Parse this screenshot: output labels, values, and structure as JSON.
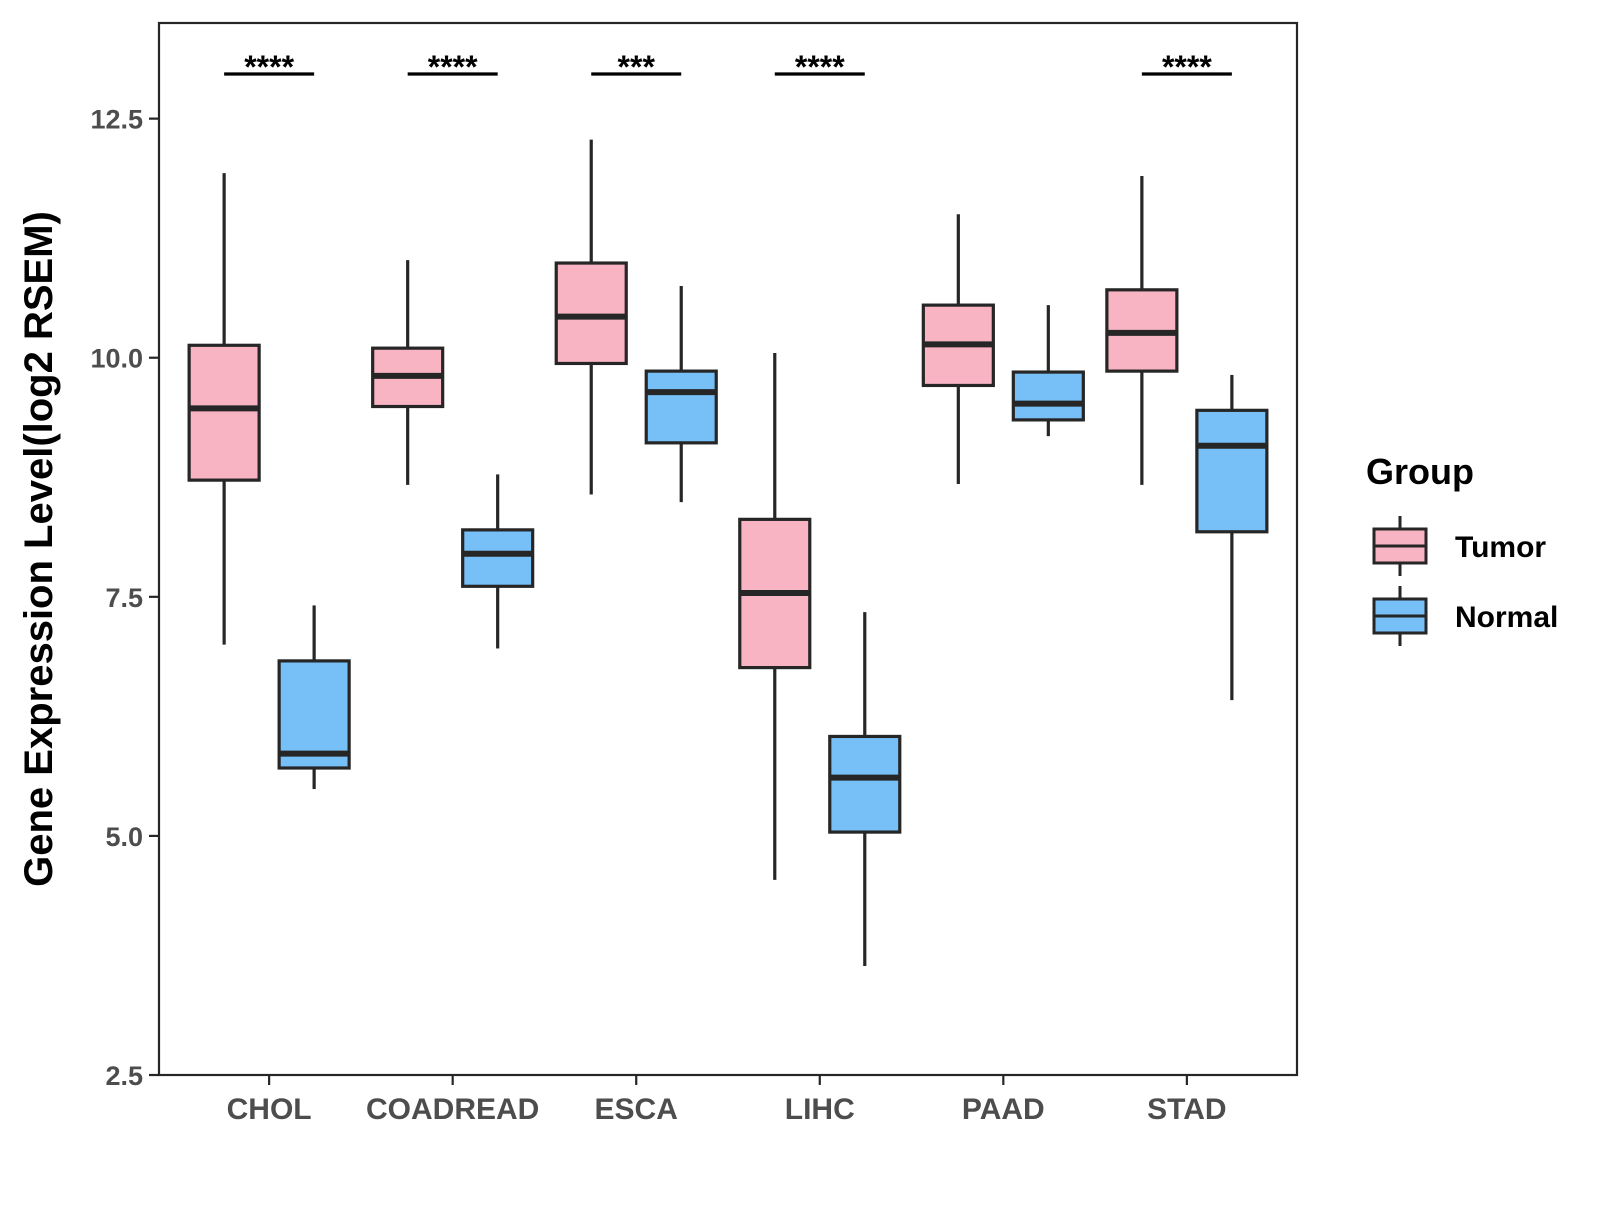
{
  "chart_data": {
    "type": "boxplot",
    "ylabel": "Gene Expression Level(log2 RSEM)",
    "xlabel": "",
    "ylim": [
      2.5,
      13.5
    ],
    "yticks": [
      2.5,
      5.0,
      7.5,
      10.0,
      12.5
    ],
    "ytick_labels": [
      "2.5",
      "5.0",
      "7.5",
      "10.0",
      "12.5"
    ],
    "categories": [
      "CHOL",
      "COADREAD",
      "ESCA",
      "LIHC",
      "PAAD",
      "STAD"
    ],
    "legend": {
      "title": "Group",
      "position": "right",
      "entries": [
        "Tumor",
        "Normal"
      ]
    },
    "colors": {
      "Tumor": "#f9b4c4",
      "Normal": "#76bff7",
      "stroke": "#262626",
      "axis": "#262626"
    },
    "significance": [
      "****",
      "****",
      "***",
      "****",
      "",
      "****"
    ],
    "series": [
      {
        "name": "Tumor",
        "boxes": [
          {
            "min": 7.0,
            "q1": 8.72,
            "median": 9.47,
            "q3": 10.13,
            "max": 11.93
          },
          {
            "min": 8.67,
            "q1": 9.49,
            "median": 9.81,
            "q3": 10.1,
            "max": 11.02
          },
          {
            "min": 8.57,
            "q1": 9.94,
            "median": 10.43,
            "q3": 10.99,
            "max": 12.28
          },
          {
            "min": 4.54,
            "q1": 6.76,
            "median": 7.54,
            "q3": 8.31,
            "max": 10.05
          },
          {
            "min": 8.68,
            "q1": 9.71,
            "median": 10.14,
            "q3": 10.55,
            "max": 11.5
          },
          {
            "min": 8.67,
            "q1": 9.86,
            "median": 10.26,
            "q3": 10.71,
            "max": 11.9
          }
        ]
      },
      {
        "name": "Normal",
        "boxes": [
          {
            "min": 5.49,
            "q1": 5.71,
            "median": 5.86,
            "q3": 6.83,
            "max": 7.41
          },
          {
            "min": 6.96,
            "q1": 7.61,
            "median": 7.95,
            "q3": 8.2,
            "max": 8.78
          },
          {
            "min": 8.49,
            "q1": 9.11,
            "median": 9.64,
            "q3": 9.86,
            "max": 10.75
          },
          {
            "min": 3.64,
            "q1": 5.04,
            "median": 5.61,
            "q3": 6.04,
            "max": 7.34
          },
          {
            "min": 9.18,
            "q1": 9.35,
            "median": 9.52,
            "q3": 9.85,
            "max": 10.55
          },
          {
            "min": 6.42,
            "q1": 8.18,
            "median": 9.08,
            "q3": 9.45,
            "max": 9.82
          }
        ]
      }
    ]
  }
}
